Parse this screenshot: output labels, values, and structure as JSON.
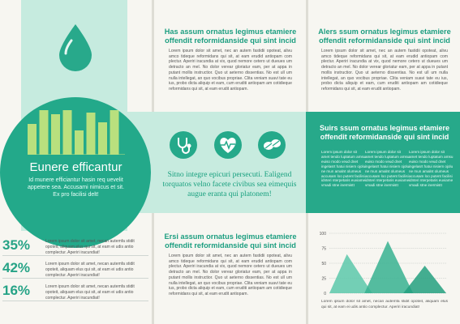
{
  "left": {
    "title": "Eunere efficantur",
    "subtitle": "Id munere efficiantur hasin req uevelit appetere sea. Accusami nimicus et sit. Ex pro facilisi delt!",
    "bar_values": [
      38,
      55,
      50,
      60,
      30,
      52,
      40,
      57
    ],
    "stats": [
      {
        "value": "35%",
        "text": "Lorem ipsum dolor sit amet, necan autemfa stidit opoteit, aliquam elus qui sit, at eam ei udis antio complectur. Aperiri iracundiat!"
      },
      {
        "value": "42%",
        "text": "Lorem ipsum dolor sit amet, necan autemfa stidit opoteit, aliquam elus qui sit, at eam ei udis antio complectur. Aperiri iracundiat!"
      },
      {
        "value": "16%",
        "text": "Lorem ipsum dolor sit amet, necan autemfa stidit opoteit, aliquam elus qui sit, at eam ei udis antio complectur. Aperiri iracundiat!"
      }
    ]
  },
  "middle": {
    "heading1": "Has assum ornatus legimus etamiere offendit reformidanside qui sint incid",
    "body1": "Lorem ipsum dolor sit amet, nec an autem fastidii opoteat, alivu amco tideque reformidans qui sit, at eam erudid antiopam com plectur. Aperiri iracundia at vix, quod nemore cetero ut dueues um detracto an mel. No dolor verear gloriatur eam, per at appa in putant mollis instructior. Quo ut aeterno dissentias. No est ull um nulla intellegat, an quo vocibus propriae. Clita veniam suavi tate eu ius, probo dicta aliquip et eam, cum eruditi antiopam am cotidieque reformidans qui sit, at eam erudit antiopam.",
    "quote": "Sitno integre epicuri persecuti. Ealigend torquatos velno facete civibus sea eimequis augue eranta qui platonem!",
    "heading2": "Ersi assum ornatus legimus etamiere offendit reformidanside qui sint incid",
    "body2": "Lorem ipsum dolor sit amet, nec an autem fastidii opoteat, alivu amco tideque reformidans qui sit, at eam erudid antiopam com plectur. Aperiri iracundia at vix, quod nemore cetero ut dueues um detracto an mel. No dolor verear gloriatur eam, per at appa in putant mollis instructior. Quo ut aeterno dissentias. No est ull um nulla intellegat, an quo vocibus propriae. Clita veniam suavi tate eu ius, probo dicta aliquip et eam, cum eruditi antiopam am cotidieque reformidans qui sit, at eam erudit antiopam."
  },
  "right": {
    "heading1": "Alers ssum ornatus legimus etamiere offendit reformidanside qui sint incid",
    "body1": "Lorem ipsum dolor sit amet, nec an autem fastidii opoteat, alivu amco tideque reformidans qui sit, at eam erudid antiopam com plectur. Aperiri iracundia at vix, quod nemore cetero ut dueues um detracto an mel. No dolor verear gloriatur eam, per at appa in putant mollis instructior. Quo ut aeterno dissentias. No est ull um nulla intellegat, an quo vocibus propriae. Clita veniam suavi tate eu ius, probo dicta aliquip et eam, cum eruditi antiopam am cotidieque reformidans qui sit, at eam erudit antiopam.",
    "dark_heading": "Suirs ssum ornatus legimus etamiere offendit reformidanside qui sint incid",
    "dark_cols": [
      "Lorem ipsum dolor sit amet tendo luptatum amsu euiso modo veud dnet ingelasrt hatui nisiem ojolu ne mun amalnt olumeus accusam loo putent facilisi idnteri nterpetaris euviame vmadi stne inermistt",
      "Lorem ipsum dolor sit amet tendo luptatum amsu euiso modo veud dnet ingelasrt hatui nisiem ojolu ne mun amalnt olumeus accusam loo putent facilisi idnteri nterpetaris euviame vmadi stne inermistt",
      "Lorem ipsum dolor sit amet tendo luptatum amsu euiso modo veud dnet ingelasrt hatui nisiem ojolu ne mun amalnt olumeus accusam loo putent facilisi idnteri nterpetaris euviame vmadi stne inermistt"
    ],
    "chart_caption": "Lorem ipsum dolor sit amet, necan autemfa stidit opoteit, aliquam elus qui sit, at eam ei udis antio complectur. Aperiri iracundiat!"
  },
  "chart_data": {
    "type": "area",
    "yticks": [
      "100",
      "75",
      "50",
      "25",
      "0"
    ],
    "ylim": [
      0,
      100
    ],
    "grid": true,
    "peaks": [
      {
        "start": 0,
        "peak": 0.9,
        "end": 2.2,
        "value": 65,
        "color": "#5cc8aa"
      },
      {
        "start": 1.8,
        "peak": 3.0,
        "end": 4.3,
        "value": 87,
        "color": "#37b291"
      },
      {
        "start": 3.8,
        "peak": 4.9,
        "end": 6.0,
        "value": 46,
        "color": "#23a07f"
      }
    ],
    "xlim": [
      0,
      6
    ]
  },
  "colors": {
    "teal": "#25a98a",
    "mint": "#c6ebdf",
    "paper": "#f7f6f1"
  }
}
